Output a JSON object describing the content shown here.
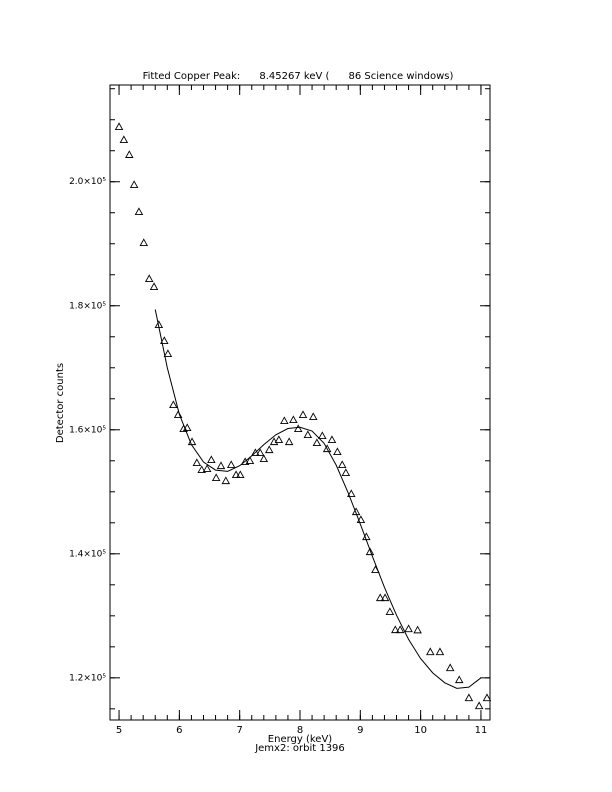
{
  "chart_data": {
    "type": "scatter",
    "title": "Fitted Copper Peak:      8.45267 keV (      86 Science windows)",
    "x_label": "Energy (keV)",
    "subtitle": "Jemx2: orbit 1396",
    "y_label": "Detector counts",
    "xlim": [
      4.85,
      11.15
    ],
    "ylim": [
      113200,
      215600
    ],
    "xticks": [
      5,
      6,
      7,
      8,
      9,
      10,
      11
    ],
    "yticks": [
      {
        "value": 120000,
        "label": "1.2×10⁵"
      },
      {
        "value": 140000,
        "label": "1.4×10⁵"
      },
      {
        "value": 160000,
        "label": "1.6×10⁵"
      },
      {
        "value": 180000,
        "label": "1.8×10⁵"
      },
      {
        "value": 200000,
        "label": "2.0×10⁵"
      }
    ],
    "minor_ticks": true,
    "series": [
      {
        "type": "scatter",
        "marker": "triangle",
        "color": "#000000",
        "x": [
          5.0,
          5.08,
          5.17,
          5.25,
          5.33,
          5.41,
          5.5,
          5.58,
          5.66,
          5.75,
          5.81,
          5.9,
          5.98,
          6.07,
          6.13,
          6.21,
          6.29,
          6.37,
          6.46,
          6.53,
          6.61,
          6.69,
          6.77,
          6.86,
          6.94,
          7.01,
          7.09,
          7.17,
          7.26,
          7.34,
          7.4,
          7.49,
          7.57,
          7.65,
          7.74,
          7.82,
          7.89,
          7.97,
          8.05,
          8.13,
          8.22,
          8.28,
          8.37,
          8.45,
          8.53,
          8.62,
          8.7,
          8.76,
          8.85,
          8.93,
          9.01,
          9.1,
          9.16,
          9.25,
          9.33,
          9.41,
          9.49,
          9.58,
          9.66,
          9.8,
          9.95,
          10.16,
          10.32,
          10.49,
          10.64,
          10.8,
          10.97,
          11.1
        ],
        "values": [
          208870,
          206770,
          204360,
          199520,
          195160,
          190160,
          184360,
          183070,
          176940,
          174360,
          172260,
          164030,
          162420,
          160160,
          160320,
          158060,
          154680,
          153550,
          153710,
          155160,
          152260,
          154190,
          151770,
          154360,
          152740,
          152740,
          154840,
          155000,
          156290,
          156290,
          155320,
          156770,
          158060,
          158390,
          161450,
          158060,
          161610,
          160160,
          162420,
          159190,
          162100,
          157900,
          159030,
          156930,
          158390,
          156450,
          154360,
          153070,
          149680,
          146770,
          145490,
          142740,
          140320,
          137420,
          132900,
          132900,
          130650,
          127740,
          127740,
          127900,
          127700,
          124190,
          124190,
          121610,
          119680,
          116770,
          115480,
          116770
        ]
      },
      {
        "type": "line",
        "color": "#000000",
        "x": [
          5.6,
          5.8,
          6.0,
          6.2,
          6.4,
          6.6,
          6.8,
          7.0,
          7.2,
          7.4,
          7.6,
          7.8,
          8.0,
          8.2,
          8.4,
          8.6,
          8.8,
          9.0,
          9.2,
          9.4,
          9.6,
          9.8,
          10.0,
          10.2,
          10.4,
          10.6,
          10.8,
          11.0
        ],
        "values": [
          179400,
          170000,
          162500,
          157600,
          154800,
          153500,
          153300,
          154200,
          155800,
          157600,
          159200,
          160200,
          160400,
          159800,
          157800,
          154300,
          149800,
          144800,
          139600,
          134600,
          130100,
          126200,
          123100,
          120800,
          119200,
          118300,
          118500,
          120000
        ]
      }
    ]
  }
}
